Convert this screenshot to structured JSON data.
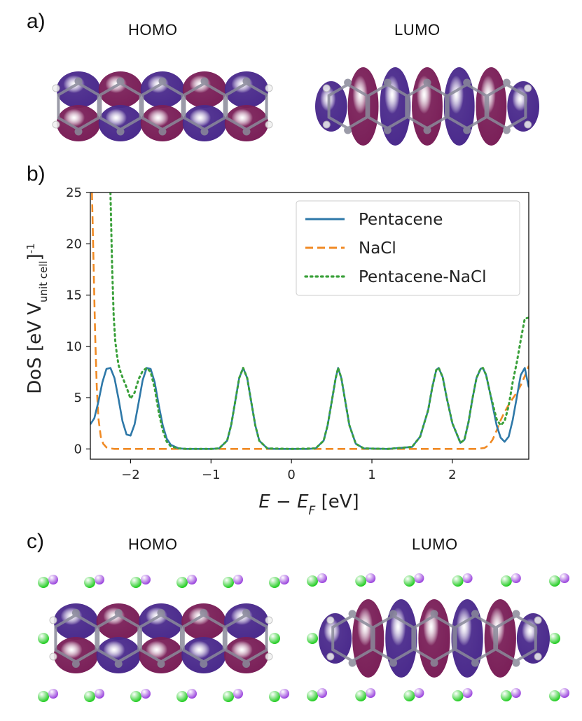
{
  "panels": {
    "a": {
      "label": "a)",
      "left_title": "HOMO",
      "right_title": "LUMO"
    },
    "b": {
      "label": "b)"
    },
    "c": {
      "label": "c)",
      "left_title": "HOMO",
      "right_title": "LUMO"
    }
  },
  "colors": {
    "purple_lobe": "#4a2a8c",
    "magenta_lobe": "#7a1f58",
    "carbon": "#8a8a9a",
    "hydrogen": "#f0f0f0",
    "chlorine": "#22cc22",
    "sodium": "#9a44dd"
  },
  "chart_data": {
    "type": "line",
    "xlabel": "E − E_F [eV]",
    "ylabel": "DoS [eV V_unit cell]^-1",
    "ylabel_parts": {
      "main": "DoS [eV V",
      "sub": "unit cell",
      "close": "]",
      "sup": "-1"
    },
    "xlabel_parts": {
      "e": "E",
      "minus": " − ",
      "ef": "E",
      "sub": "F",
      "unit": " [eV]"
    },
    "xlim": [
      -2.5,
      2.95
    ],
    "ylim": [
      -1,
      25
    ],
    "xticks": [
      -2,
      -1,
      0,
      1,
      2
    ],
    "xtick_labels": [
      "−2",
      "−1",
      "0",
      "1",
      "2"
    ],
    "yticks": [
      0,
      5,
      10,
      15,
      20,
      25
    ],
    "ytick_labels": [
      "0",
      "5",
      "10",
      "15",
      "20",
      "25"
    ],
    "grid": false,
    "legend_position": "top-right",
    "series": [
      {
        "name": "Pentacene",
        "style": "solid",
        "color": "#2e78a8",
        "x": [
          -2.5,
          -2.45,
          -2.4,
          -2.35,
          -2.3,
          -2.25,
          -2.2,
          -2.15,
          -2.1,
          -2.05,
          -2.0,
          -1.95,
          -1.9,
          -1.85,
          -1.8,
          -1.75,
          -1.7,
          -1.65,
          -1.6,
          -1.55,
          -1.5,
          -1.4,
          -1.3,
          -1.2,
          -1.0,
          -0.9,
          -0.8,
          -0.75,
          -0.7,
          -0.65,
          -0.6,
          -0.55,
          -0.5,
          -0.45,
          -0.4,
          -0.3,
          -0.2,
          0.0,
          0.2,
          0.3,
          0.4,
          0.45,
          0.5,
          0.55,
          0.58,
          0.62,
          0.67,
          0.72,
          0.8,
          0.9,
          1.2,
          1.5,
          1.6,
          1.7,
          1.75,
          1.8,
          1.83,
          1.88,
          1.93,
          2.0,
          2.1,
          2.15,
          2.2,
          2.25,
          2.3,
          2.35,
          2.38,
          2.42,
          2.47,
          2.55,
          2.6,
          2.65,
          2.7,
          2.75,
          2.8,
          2.85,
          2.9,
          2.95
        ],
        "y": [
          2.4,
          3.0,
          4.6,
          6.5,
          7.8,
          7.9,
          6.9,
          4.9,
          2.7,
          1.4,
          1.3,
          2.4,
          4.5,
          6.7,
          7.9,
          7.8,
          6.5,
          4.3,
          2.3,
          1.0,
          0.4,
          0.05,
          0.0,
          0.0,
          0.0,
          0.05,
          0.8,
          2.3,
          4.6,
          6.9,
          7.9,
          6.9,
          4.6,
          2.3,
          0.8,
          0.05,
          0.0,
          0.0,
          0.0,
          0.05,
          0.8,
          2.3,
          4.6,
          6.9,
          7.9,
          6.9,
          4.6,
          2.3,
          0.5,
          0.05,
          0.0,
          0.2,
          1.2,
          3.8,
          6.0,
          7.7,
          7.9,
          7.0,
          5.0,
          2.5,
          0.6,
          0.9,
          2.6,
          4.9,
          6.9,
          7.8,
          7.9,
          7.2,
          5.4,
          2.3,
          1.1,
          0.7,
          1.2,
          2.8,
          5.0,
          7.2,
          7.9,
          6.0
        ]
      },
      {
        "name": "NaCl",
        "style": "dashed",
        "color": "#f08a24",
        "x": [
          -2.48,
          -2.46,
          -2.44,
          -2.42,
          -2.4,
          -2.37,
          -2.34,
          -2.3,
          -2.25,
          -2.2,
          -2.0,
          -1.5,
          -1.0,
          0.0,
          1.0,
          2.0,
          2.3,
          2.4,
          2.45,
          2.5,
          2.55,
          2.6,
          2.65,
          2.7,
          2.75,
          2.8,
          2.85,
          2.9,
          2.95
        ],
        "y": [
          25.0,
          18.0,
          11.0,
          6.0,
          3.0,
          1.2,
          0.5,
          0.15,
          0.05,
          0.0,
          0.0,
          0.0,
          0.0,
          0.0,
          0.0,
          0.0,
          0.0,
          0.1,
          0.35,
          0.9,
          1.8,
          2.8,
          3.6,
          4.3,
          4.9,
          5.5,
          6.2,
          7.1,
          8.1
        ]
      },
      {
        "name": "Pentacene-NaCl",
        "style": "dotted",
        "color": "#3aa03a",
        "x": [
          -2.25,
          -2.23,
          -2.21,
          -2.19,
          -2.17,
          -2.15,
          -2.12,
          -2.1,
          -2.05,
          -2.0,
          -1.95,
          -1.9,
          -1.85,
          -1.8,
          -1.75,
          -1.7,
          -1.65,
          -1.6,
          -1.55,
          -1.5,
          -1.4,
          -1.3,
          -1.0,
          -0.9,
          -0.8,
          -0.75,
          -0.7,
          -0.65,
          -0.6,
          -0.55,
          -0.5,
          -0.45,
          -0.4,
          -0.3,
          0.0,
          0.3,
          0.4,
          0.45,
          0.5,
          0.55,
          0.58,
          0.62,
          0.67,
          0.72,
          0.8,
          0.9,
          1.2,
          1.5,
          1.6,
          1.7,
          1.75,
          1.8,
          1.83,
          1.88,
          1.93,
          2.0,
          2.1,
          2.15,
          2.2,
          2.25,
          2.3,
          2.35,
          2.38,
          2.42,
          2.47,
          2.55,
          2.6,
          2.65,
          2.7,
          2.75,
          2.8,
          2.85,
          2.9,
          2.95
        ],
        "y": [
          25.0,
          18.0,
          13.0,
          10.5,
          9.2,
          8.2,
          7.4,
          7.0,
          6.0,
          4.9,
          5.5,
          6.8,
          7.6,
          7.9,
          7.5,
          5.9,
          3.6,
          1.8,
          0.7,
          0.25,
          0.05,
          0.0,
          0.0,
          0.05,
          0.8,
          2.3,
          4.6,
          6.9,
          7.9,
          6.9,
          4.6,
          2.3,
          0.8,
          0.05,
          0.0,
          0.05,
          0.8,
          2.3,
          4.6,
          6.9,
          7.9,
          6.9,
          4.6,
          2.3,
          0.5,
          0.05,
          0.0,
          0.2,
          1.2,
          3.8,
          6.0,
          7.7,
          7.9,
          7.0,
          5.0,
          2.5,
          0.6,
          0.9,
          2.6,
          4.9,
          6.9,
          7.8,
          7.9,
          7.2,
          5.4,
          2.9,
          2.3,
          2.7,
          4.2,
          6.5,
          8.4,
          10.6,
          12.7,
          12.8
        ]
      }
    ]
  }
}
